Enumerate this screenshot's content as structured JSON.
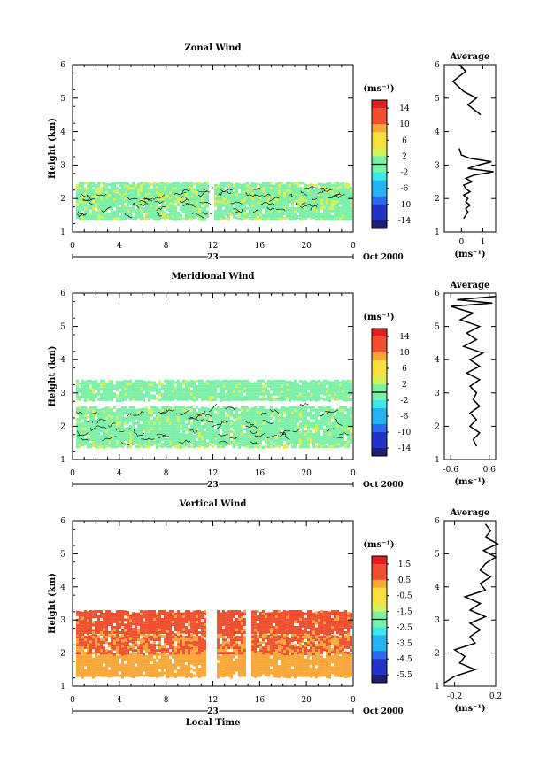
{
  "chart_data": [
    {
      "type": "heatmap",
      "title": "Zonal Wind",
      "ylabel": "Height (km)",
      "ylim": [
        1,
        6
      ],
      "yticks": [
        "1",
        "2",
        "3",
        "4",
        "5",
        "6"
      ],
      "xlim": [
        0,
        24
      ],
      "xticks": [
        "0",
        "4",
        "8",
        "12",
        "16",
        "20",
        "0"
      ],
      "date_day": "23",
      "date_month_year": "Oct 2000",
      "colorbar": {
        "unit": "(ms⁻¹)",
        "ticks": [
          "14",
          "10",
          "6",
          "2",
          "-2",
          "-6",
          "-10",
          "-14"
        ],
        "range": [
          -16,
          16
        ]
      },
      "data_rows": [
        {
          "height_range": [
            1.4,
            1.5
          ],
          "value": 1
        },
        {
          "height_range": [
            1.5,
            2.3
          ],
          "value": 0.5
        },
        {
          "height_range": [
            1.9,
            2.5
          ],
          "value": 1
        }
      ],
      "average": {
        "title": "Average",
        "xlabel": "(ms⁻¹)",
        "xticks": [
          "0",
          "1"
        ],
        "xlim": [
          -0.8,
          1.6
        ],
        "ylim": [
          1,
          6
        ],
        "yticks": [
          "1",
          "2",
          "3",
          "4",
          "5",
          "6"
        ],
        "profile": [
          {
            "h": 1.4,
            "v": 0.1
          },
          {
            "h": 1.5,
            "v": 0.2
          },
          {
            "h": 1.6,
            "v": 0.3
          },
          {
            "h": 1.7,
            "v": 0.2
          },
          {
            "h": 1.8,
            "v": 0.4
          },
          {
            "h": 1.9,
            "v": 0.2
          },
          {
            "h": 2.0,
            "v": 0.3
          },
          {
            "h": 2.1,
            "v": 0.1
          },
          {
            "h": 2.2,
            "v": 0.4
          },
          {
            "h": 2.3,
            "v": 0.2
          },
          {
            "h": 2.4,
            "v": 0.1
          },
          {
            "h": 2.5,
            "v": 0.5
          },
          {
            "h": 2.6,
            "v": 0.2
          },
          {
            "h": 2.7,
            "v": 0.6
          },
          {
            "h": 2.8,
            "v": 1.5
          },
          {
            "h": 2.9,
            "v": 0.3
          },
          {
            "h": 3.0,
            "v": 0.8
          },
          {
            "h": 3.1,
            "v": 1.4
          },
          {
            "h": 3.2,
            "v": 0.4
          },
          {
            "h": 3.3,
            "v": 0.0
          },
          {
            "h": 3.5,
            "v": -0.1
          },
          {
            "h": 4.5,
            "v": 0.9
          },
          {
            "h": 4.8,
            "v": 0.3
          },
          {
            "h": 5.0,
            "v": 0.7
          },
          {
            "h": 5.2,
            "v": 0.1
          },
          {
            "h": 5.5,
            "v": -0.4
          },
          {
            "h": 5.8,
            "v": 0.2
          },
          {
            "h": 6.0,
            "v": -0.1
          }
        ]
      }
    },
    {
      "type": "heatmap",
      "title": "Meridional Wind",
      "ylabel": "Height (km)",
      "ylim": [
        1,
        6
      ],
      "yticks": [
        "1",
        "2",
        "3",
        "4",
        "5",
        "6"
      ],
      "xlim": [
        0,
        24
      ],
      "xticks": [
        "0",
        "4",
        "8",
        "12",
        "16",
        "20",
        "0"
      ],
      "date_day": "23",
      "date_month_year": "Oct 2000",
      "colorbar": {
        "unit": "(ms⁻¹)",
        "ticks": [
          "14",
          "10",
          "6",
          "2",
          "-2",
          "-6",
          "-10",
          "-14"
        ],
        "range": [
          -16,
          16
        ]
      },
      "data_rows": [
        {
          "height_range": [
            1.4,
            1.5
          ],
          "value": 1
        },
        {
          "height_range": [
            1.5,
            2.6
          ],
          "value": 0.5
        },
        {
          "height_range": [
            2.8,
            3.4
          ],
          "value": 0.5
        }
      ],
      "average": {
        "title": "Average",
        "xlabel": "(ms⁻¹)",
        "xticks": [
          "-0.6",
          "0.6"
        ],
        "xlim": [
          -0.8,
          0.8
        ],
        "ylim": [
          1,
          6
        ],
        "yticks": [
          "1",
          "2",
          "3",
          "4",
          "5",
          "6"
        ],
        "profile": [
          {
            "h": 1.4,
            "v": 0.2
          },
          {
            "h": 1.6,
            "v": 0.1
          },
          {
            "h": 1.8,
            "v": 0.3
          },
          {
            "h": 2.0,
            "v": 0.0
          },
          {
            "h": 2.2,
            "v": 0.2
          },
          {
            "h": 2.4,
            "v": 0.0
          },
          {
            "h": 2.6,
            "v": 0.3
          },
          {
            "h": 2.8,
            "v": 0.1
          },
          {
            "h": 3.0,
            "v": 0.2
          },
          {
            "h": 3.2,
            "v": 0.0
          },
          {
            "h": 3.4,
            "v": 0.3
          },
          {
            "h": 3.6,
            "v": -0.1
          },
          {
            "h": 3.8,
            "v": 0.3
          },
          {
            "h": 4.0,
            "v": 0.0
          },
          {
            "h": 4.2,
            "v": 0.4
          },
          {
            "h": 4.4,
            "v": -0.2
          },
          {
            "h": 4.6,
            "v": 0.2
          },
          {
            "h": 4.8,
            "v": -0.1
          },
          {
            "h": 5.0,
            "v": 0.3
          },
          {
            "h": 5.2,
            "v": -0.3
          },
          {
            "h": 5.4,
            "v": 0.1
          },
          {
            "h": 5.6,
            "v": -0.6
          },
          {
            "h": 5.7,
            "v": 0.7
          },
          {
            "h": 5.8,
            "v": -0.4
          },
          {
            "h": 5.9,
            "v": 0.8
          }
        ]
      }
    },
    {
      "type": "heatmap",
      "title": "Vertical Wind",
      "ylabel": "Height (km)",
      "xlabel": "Local Time",
      "ylim": [
        1,
        6
      ],
      "yticks": [
        "1",
        "2",
        "3",
        "4",
        "5",
        "6"
      ],
      "xlim": [
        0,
        24
      ],
      "xticks": [
        "0",
        "4",
        "8",
        "12",
        "16",
        "20",
        "0"
      ],
      "date_day": "23",
      "date_month_year": "Oct 2000",
      "colorbar": {
        "unit": "(ms⁻¹)",
        "ticks": [
          "1.5",
          "0.5",
          "-0.5",
          "-1.5",
          "-2.5",
          "-3.5",
          "-4.5",
          "-5.5"
        ],
        "range": [
          -6,
          2
        ]
      },
      "data_rows": [
        {
          "height_range": [
            1.3,
            2.0
          ],
          "value": 0.2
        },
        {
          "height_range": [
            2.0,
            2.6
          ],
          "value": 0.6
        },
        {
          "height_range": [
            2.6,
            3.3
          ],
          "value": 0.8
        }
      ],
      "average": {
        "title": "Average",
        "xlabel": "(ms⁻¹)",
        "xticks": [
          "-0.2",
          "0.2"
        ],
        "xlim": [
          -0.3,
          0.2
        ],
        "ylim": [
          1,
          6
        ],
        "yticks": [
          "1",
          "2",
          "3",
          "4",
          "5",
          "6"
        ],
        "profile": [
          {
            "h": 1.1,
            "v": -0.3
          },
          {
            "h": 1.3,
            "v": -0.2
          },
          {
            "h": 1.5,
            "v": 0.0
          },
          {
            "h": 1.7,
            "v": -0.15
          },
          {
            "h": 1.9,
            "v": -0.1
          },
          {
            "h": 2.1,
            "v": -0.2
          },
          {
            "h": 2.3,
            "v": 0.0
          },
          {
            "h": 2.5,
            "v": -0.05
          },
          {
            "h": 2.7,
            "v": 0.05
          },
          {
            "h": 2.9,
            "v": -0.05
          },
          {
            "h": 3.1,
            "v": 0.1
          },
          {
            "h": 3.3,
            "v": -0.05
          },
          {
            "h": 3.5,
            "v": 0.05
          },
          {
            "h": 3.7,
            "v": -0.1
          },
          {
            "h": 3.9,
            "v": 0.1
          },
          {
            "h": 4.1,
            "v": 0.05
          },
          {
            "h": 4.3,
            "v": 0.15
          },
          {
            "h": 4.5,
            "v": 0.05
          },
          {
            "h": 4.7,
            "v": 0.1
          },
          {
            "h": 4.9,
            "v": 0.2
          },
          {
            "h": 5.1,
            "v": 0.08
          },
          {
            "h": 5.3,
            "v": 0.22
          },
          {
            "h": 5.5,
            "v": 0.1
          },
          {
            "h": 5.7,
            "v": 0.15
          },
          {
            "h": 5.9,
            "v": 0.1
          }
        ]
      }
    }
  ]
}
